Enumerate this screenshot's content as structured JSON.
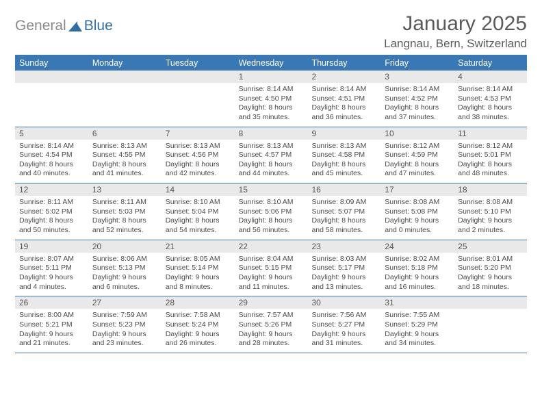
{
  "logo": {
    "gray": "General",
    "blue": "Blue"
  },
  "title": "January 2025",
  "location": "Langnau, Bern, Switzerland",
  "colors": {
    "header_bar": "#3a78b5",
    "day_bar": "#e9e9e9",
    "rule": "#3a78b5",
    "text": "#4a4a4a",
    "logo_gray": "#8a8a8a",
    "logo_blue": "#2f6fa8"
  },
  "dow": [
    "Sunday",
    "Monday",
    "Tuesday",
    "Wednesday",
    "Thursday",
    "Friday",
    "Saturday"
  ],
  "weeks": [
    [
      {
        "n": "",
        "sr": "",
        "ss": "",
        "dl": ""
      },
      {
        "n": "",
        "sr": "",
        "ss": "",
        "dl": ""
      },
      {
        "n": "",
        "sr": "",
        "ss": "",
        "dl": ""
      },
      {
        "n": "1",
        "sr": "Sunrise: 8:14 AM",
        "ss": "Sunset: 4:50 PM",
        "dl": "Daylight: 8 hours and 35 minutes."
      },
      {
        "n": "2",
        "sr": "Sunrise: 8:14 AM",
        "ss": "Sunset: 4:51 PM",
        "dl": "Daylight: 8 hours and 36 minutes."
      },
      {
        "n": "3",
        "sr": "Sunrise: 8:14 AM",
        "ss": "Sunset: 4:52 PM",
        "dl": "Daylight: 8 hours and 37 minutes."
      },
      {
        "n": "4",
        "sr": "Sunrise: 8:14 AM",
        "ss": "Sunset: 4:53 PM",
        "dl": "Daylight: 8 hours and 38 minutes."
      }
    ],
    [
      {
        "n": "5",
        "sr": "Sunrise: 8:14 AM",
        "ss": "Sunset: 4:54 PM",
        "dl": "Daylight: 8 hours and 40 minutes."
      },
      {
        "n": "6",
        "sr": "Sunrise: 8:13 AM",
        "ss": "Sunset: 4:55 PM",
        "dl": "Daylight: 8 hours and 41 minutes."
      },
      {
        "n": "7",
        "sr": "Sunrise: 8:13 AM",
        "ss": "Sunset: 4:56 PM",
        "dl": "Daylight: 8 hours and 42 minutes."
      },
      {
        "n": "8",
        "sr": "Sunrise: 8:13 AM",
        "ss": "Sunset: 4:57 PM",
        "dl": "Daylight: 8 hours and 44 minutes."
      },
      {
        "n": "9",
        "sr": "Sunrise: 8:13 AM",
        "ss": "Sunset: 4:58 PM",
        "dl": "Daylight: 8 hours and 45 minutes."
      },
      {
        "n": "10",
        "sr": "Sunrise: 8:12 AM",
        "ss": "Sunset: 4:59 PM",
        "dl": "Daylight: 8 hours and 47 minutes."
      },
      {
        "n": "11",
        "sr": "Sunrise: 8:12 AM",
        "ss": "Sunset: 5:01 PM",
        "dl": "Daylight: 8 hours and 48 minutes."
      }
    ],
    [
      {
        "n": "12",
        "sr": "Sunrise: 8:11 AM",
        "ss": "Sunset: 5:02 PM",
        "dl": "Daylight: 8 hours and 50 minutes."
      },
      {
        "n": "13",
        "sr": "Sunrise: 8:11 AM",
        "ss": "Sunset: 5:03 PM",
        "dl": "Daylight: 8 hours and 52 minutes."
      },
      {
        "n": "14",
        "sr": "Sunrise: 8:10 AM",
        "ss": "Sunset: 5:04 PM",
        "dl": "Daylight: 8 hours and 54 minutes."
      },
      {
        "n": "15",
        "sr": "Sunrise: 8:10 AM",
        "ss": "Sunset: 5:06 PM",
        "dl": "Daylight: 8 hours and 56 minutes."
      },
      {
        "n": "16",
        "sr": "Sunrise: 8:09 AM",
        "ss": "Sunset: 5:07 PM",
        "dl": "Daylight: 8 hours and 58 minutes."
      },
      {
        "n": "17",
        "sr": "Sunrise: 8:08 AM",
        "ss": "Sunset: 5:08 PM",
        "dl": "Daylight: 9 hours and 0 minutes."
      },
      {
        "n": "18",
        "sr": "Sunrise: 8:08 AM",
        "ss": "Sunset: 5:10 PM",
        "dl": "Daylight: 9 hours and 2 minutes."
      }
    ],
    [
      {
        "n": "19",
        "sr": "Sunrise: 8:07 AM",
        "ss": "Sunset: 5:11 PM",
        "dl": "Daylight: 9 hours and 4 minutes."
      },
      {
        "n": "20",
        "sr": "Sunrise: 8:06 AM",
        "ss": "Sunset: 5:13 PM",
        "dl": "Daylight: 9 hours and 6 minutes."
      },
      {
        "n": "21",
        "sr": "Sunrise: 8:05 AM",
        "ss": "Sunset: 5:14 PM",
        "dl": "Daylight: 9 hours and 8 minutes."
      },
      {
        "n": "22",
        "sr": "Sunrise: 8:04 AM",
        "ss": "Sunset: 5:15 PM",
        "dl": "Daylight: 9 hours and 11 minutes."
      },
      {
        "n": "23",
        "sr": "Sunrise: 8:03 AM",
        "ss": "Sunset: 5:17 PM",
        "dl": "Daylight: 9 hours and 13 minutes."
      },
      {
        "n": "24",
        "sr": "Sunrise: 8:02 AM",
        "ss": "Sunset: 5:18 PM",
        "dl": "Daylight: 9 hours and 16 minutes."
      },
      {
        "n": "25",
        "sr": "Sunrise: 8:01 AM",
        "ss": "Sunset: 5:20 PM",
        "dl": "Daylight: 9 hours and 18 minutes."
      }
    ],
    [
      {
        "n": "26",
        "sr": "Sunrise: 8:00 AM",
        "ss": "Sunset: 5:21 PM",
        "dl": "Daylight: 9 hours and 21 minutes."
      },
      {
        "n": "27",
        "sr": "Sunrise: 7:59 AM",
        "ss": "Sunset: 5:23 PM",
        "dl": "Daylight: 9 hours and 23 minutes."
      },
      {
        "n": "28",
        "sr": "Sunrise: 7:58 AM",
        "ss": "Sunset: 5:24 PM",
        "dl": "Daylight: 9 hours and 26 minutes."
      },
      {
        "n": "29",
        "sr": "Sunrise: 7:57 AM",
        "ss": "Sunset: 5:26 PM",
        "dl": "Daylight: 9 hours and 28 minutes."
      },
      {
        "n": "30",
        "sr": "Sunrise: 7:56 AM",
        "ss": "Sunset: 5:27 PM",
        "dl": "Daylight: 9 hours and 31 minutes."
      },
      {
        "n": "31",
        "sr": "Sunrise: 7:55 AM",
        "ss": "Sunset: 5:29 PM",
        "dl": "Daylight: 9 hours and 34 minutes."
      },
      {
        "n": "",
        "sr": "",
        "ss": "",
        "dl": ""
      }
    ]
  ]
}
